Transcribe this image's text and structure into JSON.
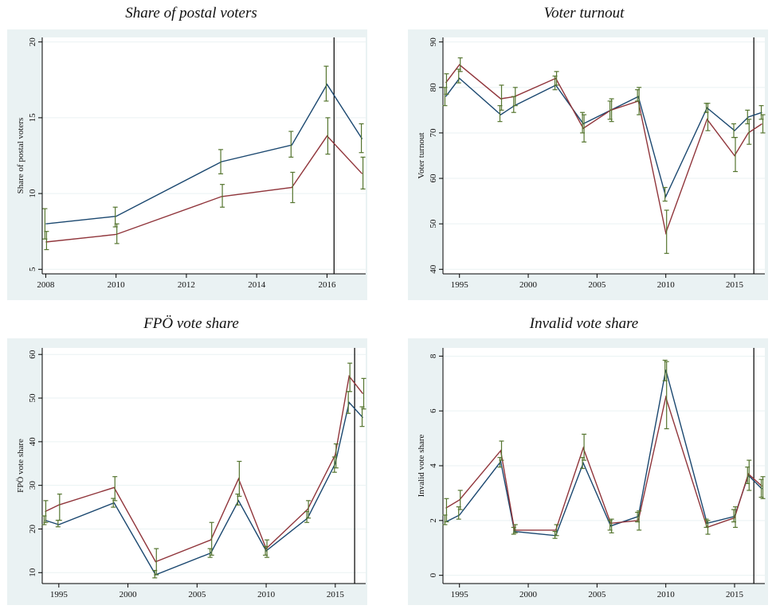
{
  "colors": {
    "series_a": "#1a476f",
    "series_b": "#90353b",
    "error_bars": "#55752f",
    "panel_bg": "#eaf2f3",
    "plot_bg": "#ffffff",
    "gridline": "#eaf2f3",
    "vline": "#000000"
  },
  "chart_data": [
    {
      "type": "line",
      "title": "Share of postal voters",
      "ylabel": "Share of postal voters",
      "xlabel": "",
      "xlim": [
        2007.9,
        2017.1
      ],
      "ylim": [
        4.7,
        20.3
      ],
      "xticks": [
        2008,
        2010,
        2012,
        2014,
        2016
      ],
      "yticks": [
        5,
        10,
        15,
        20
      ],
      "grid": true,
      "vline": 2016.2,
      "series": [
        {
          "x": [
            2008,
            2010,
            2013,
            2015,
            2016,
            2017
          ],
          "values": [
            8.0,
            8.5,
            12.1,
            13.2,
            17.2,
            13.6
          ],
          "err_low": [
            7.0,
            7.8,
            11.3,
            12.4,
            16.1,
            12.7
          ],
          "err_high": [
            9.0,
            9.1,
            12.9,
            14.1,
            18.4,
            14.6
          ]
        },
        {
          "x": [
            2008,
            2010,
            2013,
            2015,
            2016,
            2017
          ],
          "values": [
            6.8,
            7.3,
            9.8,
            10.4,
            13.8,
            11.3
          ],
          "err_low": [
            6.3,
            6.7,
            9.1,
            9.4,
            12.6,
            10.3
          ],
          "err_high": [
            7.5,
            8.0,
            10.6,
            11.4,
            15.0,
            12.4
          ]
        }
      ]
    },
    {
      "type": "line",
      "title": "Voter turnout",
      "ylabel": "Voter turnout",
      "xlabel": "",
      "xlim": [
        1993.8,
        2017.2
      ],
      "ylim": [
        39,
        91
      ],
      "xticks": [
        1995,
        2000,
        2005,
        2010,
        2015
      ],
      "yticks": [
        40,
        50,
        60,
        70,
        80,
        90
      ],
      "grid": true,
      "vline": 2016.4,
      "series": [
        {
          "x": [
            1994,
            1995,
            1998,
            1999,
            2002,
            2004,
            2006,
            2008,
            2010,
            2013,
            2015,
            2016,
            2017
          ],
          "values": [
            78,
            82,
            74,
            76,
            80.5,
            72,
            75,
            78,
            56,
            75.5,
            70.5,
            73.5,
            74.5
          ],
          "err_low": [
            76,
            81,
            72.5,
            74.5,
            79.5,
            70,
            73,
            77,
            55,
            74.5,
            69,
            72,
            73
          ],
          "err_high": [
            80,
            84,
            76,
            78,
            82.5,
            74.5,
            77,
            79.5,
            58,
            76.5,
            72,
            75,
            76
          ]
        },
        {
          "x": [
            1994,
            1995,
            1998,
            1999,
            2002,
            2004,
            2006,
            2008,
            2010,
            2013,
            2015,
            2016,
            2017
          ],
          "values": [
            81,
            85,
            77.5,
            78,
            82,
            71,
            75,
            77,
            48,
            73,
            65,
            70,
            72
          ],
          "err_low": [
            78.5,
            83.5,
            75,
            76,
            80.5,
            68,
            72.5,
            74,
            43.5,
            70.5,
            61.5,
            67.5,
            70
          ],
          "err_high": [
            83,
            86.5,
            80.5,
            80,
            83.5,
            74,
            77.5,
            80,
            53,
            76.5,
            69,
            73,
            74
          ]
        }
      ]
    },
    {
      "type": "line",
      "title": "FPÖ vote share",
      "ylabel": "FPÖ vote share",
      "xlabel": "",
      "xlim": [
        1993.8,
        2017.2
      ],
      "ylim": [
        7.5,
        61.5
      ],
      "xticks": [
        1995,
        2000,
        2005,
        2010,
        2015
      ],
      "yticks": [
        10,
        20,
        30,
        40,
        50,
        60
      ],
      "grid": true,
      "vline": 2016.4,
      "series": [
        {
          "x": [
            1994,
            1995,
            1999,
            2002,
            2006,
            2008,
            2010,
            2013,
            2015,
            2016,
            2017
          ],
          "values": [
            22,
            21,
            26,
            9.5,
            14.5,
            26.5,
            15,
            22.5,
            35,
            49,
            45.5
          ],
          "err_low": [
            21,
            20.5,
            25,
            8.8,
            13.5,
            25.5,
            14,
            21.5,
            33,
            46.5,
            43.5
          ],
          "err_high": [
            23,
            22,
            27,
            10.5,
            15.5,
            28,
            16,
            24,
            36.5,
            51.5,
            48
          ]
        },
        {
          "x": [
            1994,
            1995,
            1999,
            2002,
            2006,
            2008,
            2010,
            2013,
            2015,
            2016,
            2017
          ],
          "values": [
            24,
            25.5,
            29.5,
            12.5,
            17.5,
            31.5,
            15.5,
            24.5,
            37,
            55,
            51
          ],
          "err_low": [
            21.5,
            22,
            26.5,
            9.5,
            14,
            27.5,
            13.5,
            22.5,
            34,
            51.5,
            47.5
          ],
          "err_high": [
            26.5,
            28,
            32,
            15.5,
            21.5,
            35.5,
            17.5,
            26.5,
            39.5,
            58,
            54.5
          ]
        }
      ]
    },
    {
      "type": "line",
      "title": "Invalid vote share",
      "ylabel": "Invalid vote share",
      "xlabel": "",
      "xlim": [
        1993.8,
        2017.2
      ],
      "ylim": [
        -0.3,
        8.3
      ],
      "xticks": [
        1995,
        2000,
        2005,
        2010,
        2015
      ],
      "yticks": [
        0,
        2,
        4,
        6,
        8
      ],
      "grid": true,
      "vline": 2016.4,
      "series": [
        {
          "x": [
            1994,
            1995,
            1998,
            1999,
            2002,
            2004,
            2006,
            2008,
            2010,
            2013,
            2015,
            2016,
            2017
          ],
          "values": [
            1.95,
            2.2,
            4.15,
            1.6,
            1.45,
            4.1,
            1.8,
            2.15,
            7.5,
            1.9,
            2.15,
            3.65,
            3.15
          ],
          "err_low": [
            1.85,
            2.05,
            3.95,
            1.5,
            1.35,
            3.9,
            1.65,
            1.95,
            7.1,
            1.75,
            1.95,
            3.35,
            2.85
          ],
          "err_high": [
            2.2,
            2.5,
            4.3,
            1.75,
            1.6,
            4.3,
            2.0,
            2.3,
            7.85,
            2.05,
            2.4,
            3.95,
            3.5
          ]
        },
        {
          "x": [
            1994,
            1995,
            1998,
            1999,
            2002,
            2004,
            2006,
            2008,
            2010,
            2013,
            2015,
            2016,
            2017
          ],
          "values": [
            2.45,
            2.75,
            4.55,
            1.65,
            1.65,
            4.65,
            1.9,
            2.0,
            6.5,
            1.75,
            2.1,
            3.7,
            3.25
          ],
          "err_low": [
            1.95,
            2.4,
            4.2,
            1.55,
            1.45,
            4.2,
            1.55,
            1.65,
            5.35,
            1.5,
            1.75,
            3.1,
            2.8
          ],
          "err_high": [
            2.8,
            3.1,
            4.9,
            1.85,
            1.85,
            5.15,
            2.05,
            2.35,
            7.8,
            2.0,
            2.5,
            4.2,
            3.6
          ]
        }
      ]
    }
  ]
}
